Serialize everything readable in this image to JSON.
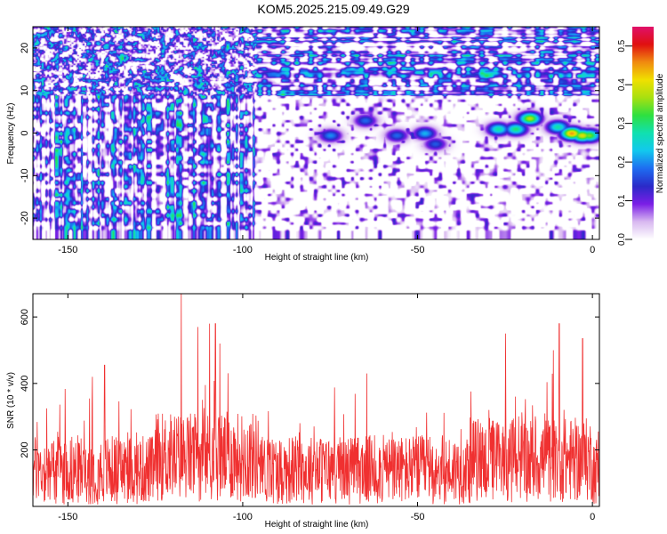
{
  "title": "KOM5.2025.215.09.49.G29",
  "chart_data": [
    {
      "type": "heatmap",
      "xlabel": "Height of straight line (km)",
      "ylabel": "Frequency (Hz)",
      "xlim": [
        -160,
        2
      ],
      "ylim": [
        -25,
        25
      ],
      "x_ticks": [
        -150,
        -100,
        -50,
        0
      ],
      "y_ticks": [
        -20,
        -10,
        0,
        10,
        20
      ],
      "colorbar": {
        "label": "Normalized spectral amplitude",
        "range": [
          0,
          0.55
        ],
        "ticks": [
          "0.0",
          "0.1",
          "0.2",
          "0.3",
          "0.4",
          "0.5"
        ],
        "colors": [
          "#ffffff",
          "#d8b8f0",
          "#7a1ee6",
          "#2a2ac8",
          "#1e6cf0",
          "#12c8ee",
          "#10e0b0",
          "#2ee040",
          "#a8e010",
          "#f0e000",
          "#f08a10",
          "#e01010",
          "#e0106a"
        ]
      },
      "ridge": {
        "description_points_km_hz": [
          [
            -78,
            -1
          ],
          [
            -70,
            0
          ],
          [
            -60,
            -1
          ],
          [
            -50,
            -1
          ],
          [
            -40,
            -2
          ],
          [
            -30,
            0.5
          ],
          [
            -20,
            3
          ],
          [
            -10,
            1
          ],
          [
            0,
            -0.5
          ]
        ],
        "peaks": [
          {
            "x": -75,
            "y": -0.5,
            "a": 0.2
          },
          {
            "x": -65,
            "y": 3,
            "a": 0.18
          },
          {
            "x": -56,
            "y": -0.5,
            "a": 0.18
          },
          {
            "x": -48,
            "y": 0,
            "a": 0.22
          },
          {
            "x": -45,
            "y": -2.5,
            "a": 0.17
          },
          {
            "x": -27,
            "y": 1,
            "a": 0.28
          },
          {
            "x": -22,
            "y": 1,
            "a": 0.3
          },
          {
            "x": -18,
            "y": 3.5,
            "a": 0.38
          },
          {
            "x": -10,
            "y": 1.5,
            "a": 0.28
          },
          {
            "x": -6,
            "y": 0,
            "a": 0.45
          },
          {
            "x": -3,
            "y": -0.5,
            "a": 0.4
          },
          {
            "x": -1,
            "y": -0.5,
            "a": 0.35
          }
        ]
      }
    },
    {
      "type": "line",
      "xlabel": "Height of straight line (km)",
      "ylabel": "SNR (10 * v/v)",
      "xlim": [
        -160,
        2
      ],
      "ylim": [
        30,
        670
      ],
      "x_ticks": [
        -150,
        -100,
        -50,
        0
      ],
      "y_ticks": [
        200,
        400,
        600
      ],
      "color": "#f03030",
      "baseline": 140,
      "peaks": [
        {
          "x": -117.6,
          "y": 670
        },
        {
          "x": -109.5,
          "y": 580
        },
        {
          "x": -107.8,
          "y": 580
        },
        {
          "x": -112.8,
          "y": 570
        },
        {
          "x": -106.5,
          "y": 520
        },
        {
          "x": -139.5,
          "y": 455
        },
        {
          "x": -9.5,
          "y": 580
        },
        {
          "x": -24.8,
          "y": 550
        },
        {
          "x": -11.2,
          "y": 500
        },
        {
          "x": -2.8,
          "y": 535
        },
        {
          "x": -64.5,
          "y": 430
        },
        {
          "x": -143.0,
          "y": 420
        }
      ]
    }
  ]
}
